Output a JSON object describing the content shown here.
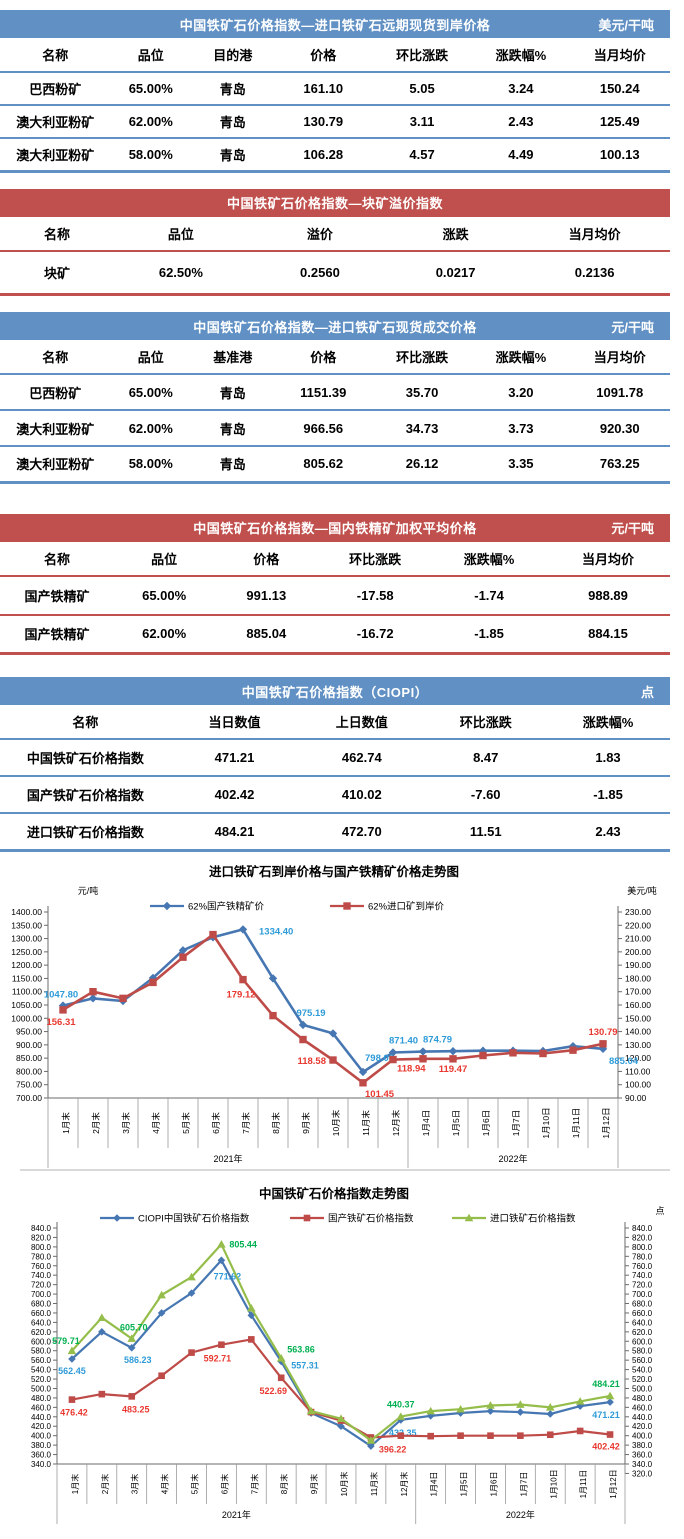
{
  "colors": {
    "blue_theme": "#6090C4",
    "red_theme": "#C0504D"
  },
  "tables": [
    {
      "id": "forward-cfr",
      "theme": "blue",
      "title": "中国铁矿石价格指数—进口铁矿石远期现货到岸价格",
      "unit": "美元/干吨",
      "columns": [
        "名称",
        "品位",
        "目的港",
        "价格",
        "环比涨跌",
        "涨跌幅%",
        "当月均价"
      ],
      "rows": [
        [
          "巴西粉矿",
          "65.00%",
          "青岛",
          "161.10",
          "5.05",
          "3.24",
          "150.24"
        ],
        [
          "澳大利亚粉矿",
          "62.00%",
          "青岛",
          "130.79",
          "3.11",
          "2.43",
          "125.49"
        ],
        [
          "澳大利亚粉矿",
          "58.00%",
          "青岛",
          "106.28",
          "4.57",
          "4.49",
          "100.13"
        ]
      ]
    },
    {
      "id": "lump-premium",
      "theme": "red",
      "title": "中国铁矿石价格指数—块矿溢价指数",
      "unit": "",
      "columns": [
        "名称",
        "品位",
        "溢价",
        "涨跌",
        "当月均价"
      ],
      "rows": [
        [
          "块矿",
          "62.50%",
          "0.2560",
          "0.0217",
          "0.2136"
        ]
      ]
    },
    {
      "id": "import-spot",
      "theme": "blue",
      "title": "中国铁矿石价格指数—进口铁矿石现货成交价格",
      "unit": "元/干吨",
      "columns": [
        "名称",
        "品位",
        "基准港",
        "价格",
        "环比涨跌",
        "涨跌幅%",
        "当月均价"
      ],
      "rows": [
        [
          "巴西粉矿",
          "65.00%",
          "青岛",
          "1151.39",
          "35.70",
          "3.20",
          "1091.78"
        ],
        [
          "澳大利亚粉矿",
          "62.00%",
          "青岛",
          "966.56",
          "34.73",
          "3.73",
          "920.30"
        ],
        [
          "澳大利亚粉矿",
          "58.00%",
          "青岛",
          "805.62",
          "26.12",
          "3.35",
          "763.25"
        ]
      ]
    },
    {
      "id": "domestic-concentrate",
      "theme": "red",
      "title": "中国铁矿石价格指数—国内铁精矿加权平均价格",
      "unit": "元/干吨",
      "columns": [
        "名称",
        "品位",
        "价格",
        "环比涨跌",
        "涨跌幅%",
        "当月均价"
      ],
      "rows": [
        [
          "国产铁精矿",
          "65.00%",
          "991.13",
          "-17.58",
          "-1.74",
          "988.89"
        ],
        [
          "国产铁精矿",
          "62.00%",
          "885.04",
          "-16.72",
          "-1.85",
          "884.15"
        ]
      ]
    },
    {
      "id": "ciopi",
      "theme": "blue",
      "title": "中国铁矿石价格指数（CIOPI）",
      "unit": "点",
      "columns": [
        "名称",
        "当日数值",
        "上日数值",
        "环比涨跌",
        "涨跌幅%"
      ],
      "rows": [
        [
          "中国铁矿石价格指数",
          "471.21",
          "462.74",
          "8.47",
          "1.83"
        ],
        [
          "国产铁矿石价格指数",
          "402.42",
          "410.02",
          "-7.60",
          "-1.85"
        ],
        [
          "进口铁矿石价格指数",
          "484.21",
          "472.70",
          "11.51",
          "2.43"
        ]
      ]
    }
  ],
  "chart_data": [
    {
      "type": "line",
      "title": "进口铁矿石到岸价格与国产铁精矿价格走势图",
      "left_axis": {
        "unit": "元/吨",
        "min": 700,
        "max": 1400,
        "step": 50,
        "decimals": 2
      },
      "right_axis": {
        "unit": "美元/吨",
        "min": 90,
        "max": 230,
        "step": 10,
        "decimals": 2
      },
      "categories": [
        "1月末",
        "2月末",
        "3月末",
        "4月末",
        "5月末",
        "6月末",
        "7月末",
        "8月末",
        "9月末",
        "10月末",
        "11月末",
        "12月末",
        "1月4日",
        "1月5日",
        "1月6日",
        "1月7日",
        "1月10日",
        "1月11日",
        "1月12日"
      ],
      "year_groups": [
        {
          "label": "2021年",
          "span": 12
        },
        {
          "label": "2022年",
          "span": 7
        }
      ],
      "grid": false,
      "legend_position": "top",
      "series": [
        {
          "name": "62%国产铁精矿价",
          "axis": "left",
          "color": "#4677B2",
          "marker": "diamond",
          "label_color": "#2E9BD9",
          "values": [
            1047.8,
            1075,
            1065,
            1152,
            1256,
            1305,
            1334.4,
            1150,
            975.19,
            943,
            798.0,
            871.4,
            874.79,
            876,
            878,
            878,
            877,
            895,
            885.04
          ],
          "labels": [
            {
              "i": 0,
              "t": "1047.80",
              "dx": -2,
              "dy": -8,
              "a": "middle"
            },
            {
              "i": 6,
              "t": "1334.40",
              "dx": 16,
              "dy": 5,
              "a": "start"
            },
            {
              "i": 8,
              "t": "975.19",
              "dx": 8,
              "dy": -9,
              "a": "middle"
            },
            {
              "i": 10,
              "t": "798.00",
              "dx": 2,
              "dy": -11,
              "a": "start"
            },
            {
              "i": 11,
              "t": "871.40",
              "dx": -4,
              "dy": -9,
              "a": "start"
            },
            {
              "i": 12,
              "t": "874.79",
              "dx": 0,
              "dy": -9,
              "a": "start"
            },
            {
              "i": 18,
              "t": "885.04",
              "dx": 6,
              "dy": 15,
              "a": "start"
            }
          ]
        },
        {
          "name": "62%进口矿到岸价",
          "axis": "right",
          "color": "#BE4B48",
          "marker": "square",
          "label_color": "#E8382F",
          "values": [
            156.31,
            170,
            165,
            177,
            196,
            213,
            179.12,
            152,
            134,
            118.58,
            101.45,
            118.94,
            119.5,
            119.47,
            122,
            124,
            123.5,
            126,
            130.79
          ],
          "labels": [
            {
              "i": 0,
              "t": "156.31",
              "dx": -2,
              "dy": 15,
              "a": "middle"
            },
            {
              "i": 6,
              "t": "179.12",
              "dx": -2,
              "dy": 18,
              "a": "middle"
            },
            {
              "i": 9,
              "t": "118.58",
              "dx": -7,
              "dy": 4,
              "a": "end"
            },
            {
              "i": 10,
              "t": "101.45",
              "dx": 2,
              "dy": 14,
              "a": "start"
            },
            {
              "i": 11,
              "t": "118.94",
              "dx": 4,
              "dy": 12,
              "a": "start"
            },
            {
              "i": 13,
              "t": "119.47",
              "dx": 0,
              "dy": 13,
              "a": "middle"
            },
            {
              "i": 18,
              "t": "130.79",
              "dx": 0,
              "dy": -9,
              "a": "middle"
            }
          ]
        }
      ]
    },
    {
      "type": "line",
      "title": "中国铁矿石价格指数走势图",
      "left_axis": {
        "unit": "",
        "min": 340,
        "max": 840,
        "step": 20,
        "decimals": 1
      },
      "right_axis": {
        "unit": "点",
        "min": 320,
        "max": 840,
        "step": 20,
        "decimals": 1
      },
      "categories": [
        "1月末",
        "2月末",
        "3月末",
        "4月末",
        "5月末",
        "6月末",
        "7月末",
        "8月末",
        "9月末",
        "10月末",
        "11月末",
        "12月末",
        "1月4日",
        "1月5日",
        "1月6日",
        "1月7日",
        "1月10日",
        "1月11日",
        "1月12日"
      ],
      "year_groups": [
        {
          "label": "2021年",
          "span": 12
        },
        {
          "label": "2022年",
          "span": 7
        }
      ],
      "grid": false,
      "legend_position": "top",
      "series": [
        {
          "name": "CIOPI中国铁矿石价格指数",
          "axis": "left",
          "color": "#4677B2",
          "marker": "diamond",
          "label_color": "#2E9BD9",
          "values": [
            562.45,
            620,
            586.23,
            660,
            702,
            771.62,
            655,
            557.31,
            448,
            420,
            378,
            433.35,
            442,
            448,
            452,
            450,
            446,
            462.74,
            471.21
          ],
          "labels": [
            {
              "i": 0,
              "t": "562.45",
              "dx": 0,
              "dy": 15,
              "a": "middle"
            },
            {
              "i": 2,
              "t": "586.23",
              "dx": 6,
              "dy": 15,
              "a": "middle"
            },
            {
              "i": 5,
              "t": "771.62",
              "dx": 6,
              "dy": 19,
              "a": "middle"
            },
            {
              "i": 7,
              "t": "557.31",
              "dx": 10,
              "dy": 7,
              "a": "start"
            },
            {
              "i": 11,
              "t": "433.35",
              "dx": 2,
              "dy": 16,
              "a": "middle"
            },
            {
              "i": 18,
              "t": "471.21",
              "dx": -4,
              "dy": 16,
              "a": "middle"
            }
          ]
        },
        {
          "name": "国产铁矿石价格指数",
          "axis": "left",
          "color": "#BE4B48",
          "marker": "square",
          "label_color": "#E8382F",
          "values": [
            476.42,
            488,
            483.25,
            527,
            576,
            592.71,
            604,
            522.69,
            450,
            432,
            396.22,
            400,
            399,
            400,
            400,
            400,
            402,
            410.02,
            402.42
          ],
          "labels": [
            {
              "i": 0,
              "t": "476.42",
              "dx": 2,
              "dy": 16,
              "a": "middle"
            },
            {
              "i": 2,
              "t": "483.25",
              "dx": 4,
              "dy": 16,
              "a": "middle"
            },
            {
              "i": 5,
              "t": "592.71",
              "dx": -4,
              "dy": 17,
              "a": "middle"
            },
            {
              "i": 7,
              "t": "522.69",
              "dx": -8,
              "dy": 16,
              "a": "middle"
            },
            {
              "i": 10,
              "t": "396.22",
              "dx": 8,
              "dy": 15,
              "a": "start"
            },
            {
              "i": 18,
              "t": "402.42",
              "dx": -4,
              "dy": 15,
              "a": "middle"
            }
          ]
        },
        {
          "name": "进口铁矿石价格指数",
          "axis": "left",
          "color": "#94BD4A",
          "marker": "triangle",
          "label_color": "#00B050",
          "values": [
            579.71,
            650,
            605.7,
            698,
            736,
            805.44,
            670,
            563.86,
            452,
            436,
            390,
            440.37,
            452,
            456,
            464,
            466,
            460,
            472.7,
            484.21
          ],
          "labels": [
            {
              "i": 0,
              "t": "579.71",
              "dx": -6,
              "dy": -7,
              "a": "middle"
            },
            {
              "i": 2,
              "t": "605.70",
              "dx": 2,
              "dy": -8,
              "a": "middle"
            },
            {
              "i": 5,
              "t": "805.44",
              "dx": 8,
              "dy": 3,
              "a": "start"
            },
            {
              "i": 7,
              "t": "563.86",
              "dx": 6,
              "dy": -6,
              "a": "start"
            },
            {
              "i": 11,
              "t": "440.37",
              "dx": 0,
              "dy": -9,
              "a": "middle"
            },
            {
              "i": 18,
              "t": "484.21",
              "dx": -4,
              "dy": -9,
              "a": "middle"
            }
          ]
        }
      ]
    }
  ]
}
